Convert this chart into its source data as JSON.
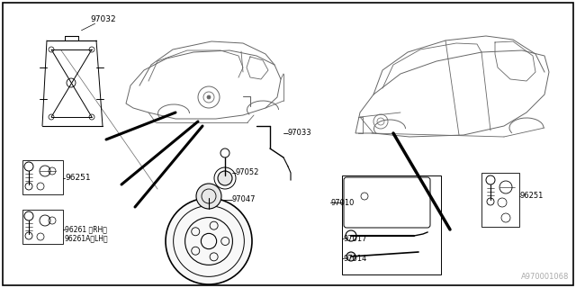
{
  "bg_color": "#ffffff",
  "line_color": "#000000",
  "diagram_color": "#666666",
  "fig_width": 6.4,
  "fig_height": 3.2,
  "dpi": 100,
  "watermark": "A970001068",
  "label_fontsize": 6.0,
  "label_color": "#222222"
}
